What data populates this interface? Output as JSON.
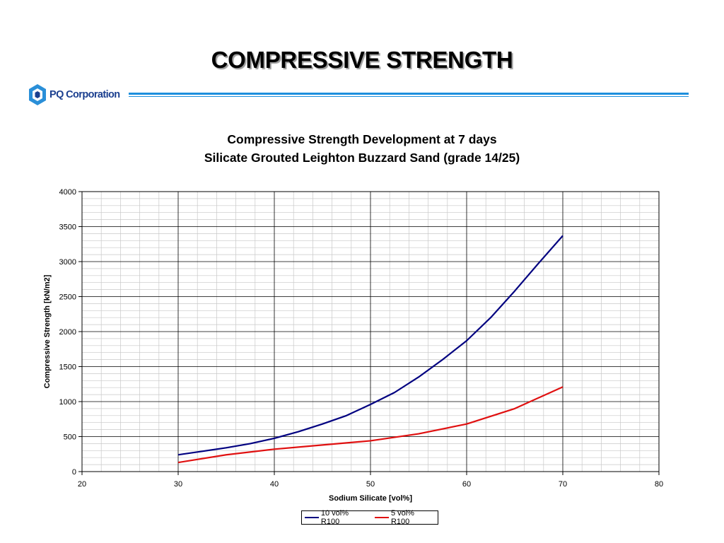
{
  "slide": {
    "title": "COMPRESSIVE STRENGTH",
    "logo_text": "PQ Corporation"
  },
  "chart_data": {
    "type": "line",
    "title": "Compressive Strength Development at 7 days",
    "subtitle": "Silicate Grouted Leighton Buzzard Sand (grade 14/25)",
    "xlabel": "Sodium Silicate [vol%]",
    "ylabel": "Compressive Strength [kN/m2]",
    "xlim": [
      20,
      80
    ],
    "ylim": [
      0,
      4000
    ],
    "x_ticks": [
      20,
      30,
      40,
      50,
      60,
      70,
      80
    ],
    "y_ticks": [
      0,
      500,
      1000,
      1500,
      2000,
      2500,
      3000,
      3500,
      4000
    ],
    "grid": true,
    "legend_position": "bottom-center",
    "series": [
      {
        "name": "10 vol% R100",
        "color": "#000080",
        "x": [
          30,
          32.5,
          35,
          37.5,
          40,
          42.5,
          45,
          47.5,
          50,
          52.5,
          55,
          57.5,
          60,
          62.5,
          65,
          67.5,
          70
        ],
        "y": [
          240,
          290,
          340,
          400,
          475,
          570,
          680,
          800,
          960,
          1130,
          1350,
          1600,
          1870,
          2200,
          2580,
          2980,
          3370
        ]
      },
      {
        "name": "5 vol% R100",
        "color": "#e01010",
        "x": [
          30,
          35,
          40,
          45,
          50,
          55,
          60,
          65,
          70
        ],
        "y": [
          130,
          240,
          320,
          380,
          440,
          540,
          680,
          900,
          1210
        ]
      }
    ]
  }
}
